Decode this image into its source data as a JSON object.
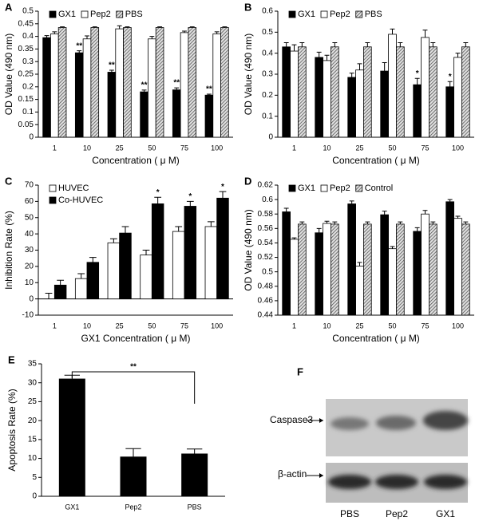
{
  "chart_data": [
    {
      "type": "bar",
      "label": "A",
      "ylabel": "OD Value (490 nm)",
      "xlabel": "Concentration ( μ M)",
      "categories": [
        "1",
        "10",
        "25",
        "50",
        "75",
        "100"
      ],
      "ylim": [
        0,
        0.5
      ],
      "yticks": [
        0,
        0.05,
        0.1,
        0.15,
        0.2,
        0.25,
        0.3,
        0.35,
        0.4,
        0.45,
        0.5
      ],
      "legend": "upper left",
      "legend_orientation": "horizontal",
      "series": [
        {
          "name": "GX1",
          "color": "#000000",
          "values": [
            0.395,
            0.335,
            0.258,
            0.18,
            0.188,
            0.167
          ],
          "errors": [
            0.008,
            0.008,
            0.008,
            0.007,
            0.008,
            0.004
          ],
          "annotations": [
            null,
            "**",
            "**",
            "**",
            "**",
            "**"
          ]
        },
        {
          "name": "Pep2",
          "color": "#ffffff",
          "values": [
            0.41,
            0.39,
            0.43,
            0.39,
            0.415,
            0.41
          ],
          "errors": [
            0.008,
            0.012,
            0.012,
            0.01,
            0.006,
            0.008
          ],
          "annotations": [
            null,
            null,
            null,
            null,
            null,
            null
          ]
        },
        {
          "name": "PBS",
          "color": "#888888",
          "hatch": true,
          "values": [
            0.435,
            0.435,
            0.435,
            0.435,
            0.435,
            0.435
          ],
          "errors": [
            0.003,
            0.003,
            0.003,
            0.003,
            0.003,
            0.003
          ],
          "annotations": [
            null,
            null,
            null,
            null,
            null,
            null
          ]
        }
      ]
    },
    {
      "type": "bar",
      "label": "B",
      "ylabel": "OD Value (490 nm)",
      "xlabel": "Concentration ( μ M)",
      "categories": [
        "1",
        "10",
        "25",
        "50",
        "75",
        "100"
      ],
      "ylim": [
        0,
        0.6
      ],
      "yticks": [
        0,
        0.1,
        0.2,
        0.3,
        0.4,
        0.5,
        0.6
      ],
      "legend": "upper left",
      "legend_orientation": "horizontal",
      "series": [
        {
          "name": "GX1",
          "color": "#000000",
          "values": [
            0.43,
            0.38,
            0.285,
            0.315,
            0.25,
            0.24
          ],
          "errors": [
            0.02,
            0.025,
            0.02,
            0.04,
            0.03,
            0.025
          ],
          "annotations": [
            null,
            null,
            null,
            null,
            "*",
            "*"
          ]
        },
        {
          "name": "Pep2",
          "color": "#ffffff",
          "values": [
            0.41,
            0.365,
            0.32,
            0.49,
            0.475,
            0.38
          ],
          "errors": [
            0.03,
            0.025,
            0.03,
            0.025,
            0.035,
            0.02
          ],
          "annotations": [
            null,
            null,
            null,
            null,
            null,
            null
          ]
        },
        {
          "name": "PBS",
          "color": "#888888",
          "hatch": true,
          "values": [
            0.43,
            0.43,
            0.43,
            0.43,
            0.43,
            0.43
          ],
          "errors": [
            0.02,
            0.02,
            0.02,
            0.02,
            0.02,
            0.02
          ],
          "annotations": [
            null,
            null,
            null,
            null,
            null,
            null
          ]
        }
      ]
    },
    {
      "type": "bar",
      "label": "C",
      "ylabel": "Inhibition Rate (%)",
      "xlabel": "GX1 Concentration ( μ M)",
      "categories": [
        "1",
        "10",
        "25",
        "50",
        "75",
        "100"
      ],
      "ylim": [
        -10,
        70
      ],
      "yticks": [
        -10,
        0,
        10,
        20,
        30,
        40,
        50,
        60,
        70
      ],
      "legend": "upper left",
      "legend_orientation": "vertical",
      "series": [
        {
          "name": "HUVEC",
          "color": "#ffffff",
          "values": [
            0,
            12.5,
            34.5,
            27,
            41.5,
            44.5
          ],
          "errors": [
            3.5,
            3,
            2.5,
            3,
            3,
            3
          ],
          "annotations": [
            null,
            null,
            null,
            null,
            null,
            null
          ]
        },
        {
          "name": "Co-HUVEC",
          "color": "#000000",
          "values": [
            8.5,
            22.5,
            40.5,
            58.5,
            57,
            62
          ],
          "errors": [
            3,
            3,
            4,
            4,
            3,
            4
          ],
          "annotations": [
            null,
            null,
            null,
            "*",
            "*",
            "*"
          ]
        }
      ]
    },
    {
      "type": "bar",
      "label": "D",
      "ylabel": "OD Value (490 nm)",
      "xlabel": "Concentration ( μ M)",
      "categories": [
        "1",
        "10",
        "25",
        "50",
        "75",
        "100"
      ],
      "ylim": [
        0.44,
        0.62
      ],
      "yticks": [
        0.44,
        0.46,
        0.48,
        0.5,
        0.52,
        0.54,
        0.56,
        0.58,
        0.6,
        0.62
      ],
      "legend": "upper left",
      "legend_orientation": "horizontal",
      "series": [
        {
          "name": "GX1",
          "color": "#000000",
          "values": [
            0.583,
            0.554,
            0.594,
            0.579,
            0.556,
            0.597
          ],
          "errors": [
            0.005,
            0.006,
            0.004,
            0.005,
            0.005,
            0.003
          ],
          "annotations": [
            null,
            null,
            null,
            null,
            null,
            null
          ]
        },
        {
          "name": "Pep2",
          "color": "#ffffff",
          "values": [
            0.545,
            0.567,
            0.508,
            0.532,
            0.58,
            0.574
          ],
          "errors": [
            0.002,
            0.003,
            0.005,
            0.003,
            0.005,
            0.003
          ],
          "annotations": [
            null,
            null,
            null,
            null,
            null,
            null
          ]
        },
        {
          "name": "Control",
          "color": "#888888",
          "hatch": true,
          "values": [
            0.566,
            0.566,
            0.566,
            0.566,
            0.566,
            0.566
          ],
          "errors": [
            0.003,
            0.003,
            0.003,
            0.003,
            0.003,
            0.003
          ],
          "annotations": [
            null,
            null,
            null,
            null,
            null,
            null
          ]
        }
      ]
    },
    {
      "type": "bar",
      "label": "E",
      "ylabel": "Apoptosis Rate (%)",
      "categories": [
        "GX1",
        "Pep2",
        "PBS"
      ],
      "ylim": [
        0,
        35
      ],
      "yticks": [
        0,
        5,
        10,
        15,
        20,
        25,
        30,
        35
      ],
      "series": [
        {
          "color": "#000000",
          "values": [
            31,
            10.4,
            11.2
          ],
          "errors": [
            1,
            2.2,
            1.3
          ],
          "annotations": [
            null,
            null,
            null
          ]
        }
      ],
      "bracket": {
        "label": "**",
        "between": [
          "GX1",
          "PBS"
        ]
      }
    }
  ],
  "blot": {
    "label": "F",
    "rows": [
      "Caspase3",
      "β-actin"
    ],
    "lanes": [
      "PBS",
      "Pep2",
      "GX1"
    ]
  }
}
